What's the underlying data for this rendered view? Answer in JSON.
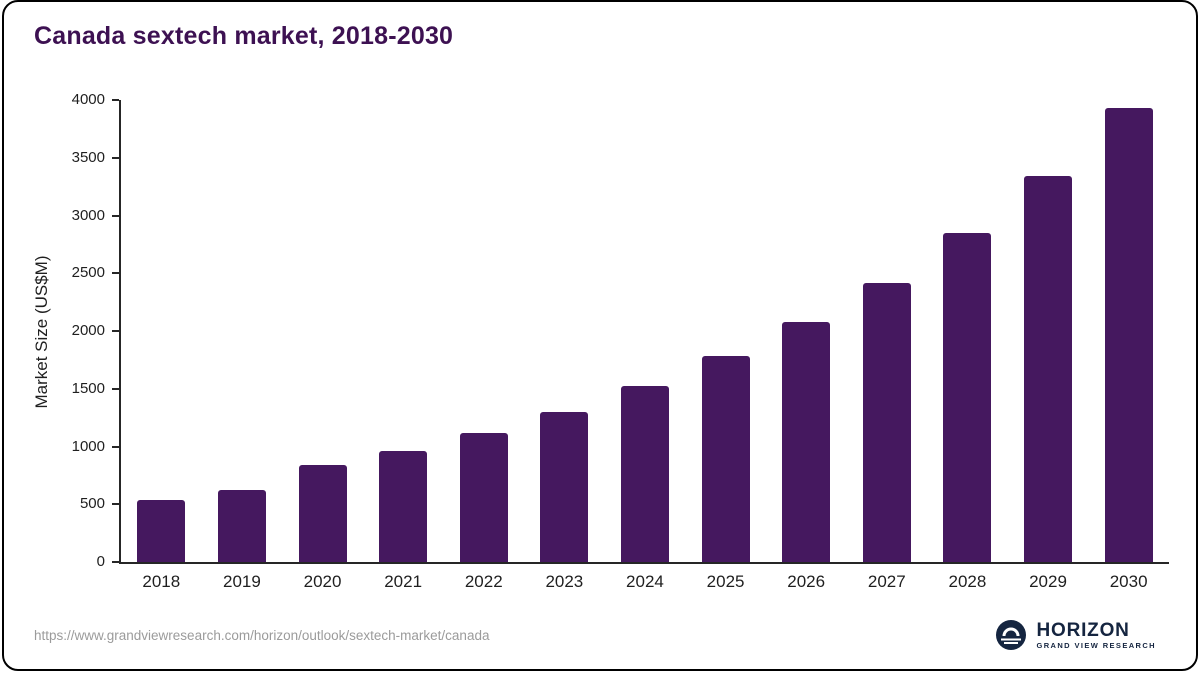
{
  "chart_data": {
    "type": "bar",
    "title": "Canada sextech market, 2018-2030",
    "xlabel": "",
    "ylabel": "Market Size (US$M)",
    "categories": [
      "2018",
      "2019",
      "2020",
      "2021",
      "2022",
      "2023",
      "2024",
      "2025",
      "2026",
      "2027",
      "2028",
      "2029",
      "2030"
    ],
    "values": [
      540,
      620,
      840,
      960,
      1120,
      1300,
      1520,
      1780,
      2080,
      2420,
      2850,
      3340,
      3930
    ],
    "ylim": [
      0,
      4000
    ],
    "yticks": [
      0,
      500,
      1000,
      1500,
      2000,
      2500,
      3000,
      3500,
      4000
    ],
    "grid": false,
    "legend": "none",
    "bar_color": "#45185f"
  },
  "footer": {
    "source_url": "https://www.grandviewresearch.com/horizon/outlook/sextech-market/canada",
    "logo_title": "HORIZON",
    "logo_subtitle": "GRAND VIEW RESEARCH"
  },
  "colors": {
    "bar": "#45185f",
    "title": "#3d1152",
    "axis": "#262626",
    "logo_navy": "#152540",
    "source_gray": "#9b9b9b"
  }
}
